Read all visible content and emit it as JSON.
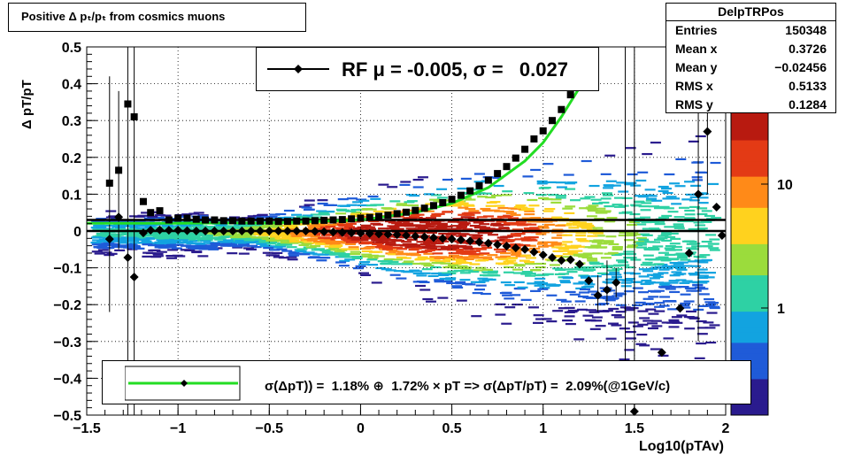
{
  "title": "Positive Δ pₜ/pₜ from cosmics muons",
  "stats": {
    "name": "DelpTRPos",
    "rows": [
      {
        "label": "Entries",
        "value": "150348"
      },
      {
        "label": "Mean x",
        "value": "0.3726"
      },
      {
        "label": "Mean y",
        "value": "−0.02456"
      },
      {
        "label": "RMS x",
        "value": "0.5133"
      },
      {
        "label": "RMS y",
        "value": "0.1284"
      }
    ]
  },
  "rf_legend": "RF μ = -0.005, σ =   0.027",
  "fit_legend": "σ(ΔpT)) =  1.18% ⊕  1.72% × pT => σ(ΔpT/pT) =  2.09%(@1GeV/c)",
  "colors": {
    "fit_curve": "#22dd22",
    "markers": "#000000",
    "palette": [
      "#2a1b8e",
      "#1f5bd8",
      "#12a3e0",
      "#2ed1a4",
      "#9bdc3c",
      "#ffd21e",
      "#ff8a18",
      "#e33a15",
      "#b81a10"
    ]
  },
  "chart_data": {
    "type": "scatter",
    "xlabel": "Log10(pTAv)",
    "ylabel": "Δ pT/pT",
    "xlim": [
      -1.5,
      2
    ],
    "ylim": [
      -0.5,
      0.5
    ],
    "grid": true,
    "x_ticks": [
      "−1.5",
      "−1",
      "−0.5",
      "0",
      "0.5",
      "1",
      "1.5",
      "2"
    ],
    "y_ticks": [
      "0.5",
      "0.4",
      "0.3",
      "0.2",
      "0.1",
      "0",
      "−0.1",
      "−0.2",
      "−0.3",
      "−0.4",
      "−0.5"
    ],
    "colorbar_ticks": [
      "10",
      "1"
    ],
    "series": [
      {
        "marker": "square",
        "points": [
          [
            -1.375,
            0.13
          ],
          [
            -1.325,
            0.165
          ],
          [
            -1.275,
            0.345
          ],
          [
            -1.24,
            0.31
          ],
          [
            -1.19,
            0.08
          ],
          [
            -1.15,
            0.05
          ],
          [
            -1.1,
            0.055
          ],
          [
            -1.05,
            0.03
          ],
          [
            -1.0,
            0.035
          ],
          [
            -0.95,
            0.035
          ],
          [
            -0.9,
            0.032
          ],
          [
            -0.85,
            0.03
          ],
          [
            -0.8,
            0.03
          ],
          [
            -0.75,
            0.028
          ],
          [
            -0.7,
            0.028
          ],
          [
            -0.65,
            0.027
          ],
          [
            -0.6,
            0.027
          ],
          [
            -0.55,
            0.027
          ],
          [
            -0.5,
            0.027
          ],
          [
            -0.45,
            0.026
          ],
          [
            -0.4,
            0.026
          ],
          [
            -0.35,
            0.027
          ],
          [
            -0.3,
            0.027
          ],
          [
            -0.25,
            0.028
          ],
          [
            -0.2,
            0.029
          ],
          [
            -0.15,
            0.03
          ],
          [
            -0.1,
            0.031
          ],
          [
            -0.05,
            0.033
          ],
          [
            0.0,
            0.035
          ],
          [
            0.05,
            0.037
          ],
          [
            0.1,
            0.04
          ],
          [
            0.15,
            0.043
          ],
          [
            0.2,
            0.047
          ],
          [
            0.25,
            0.051
          ],
          [
            0.3,
            0.056
          ],
          [
            0.35,
            0.062
          ],
          [
            0.4,
            0.069
          ],
          [
            0.45,
            0.077
          ],
          [
            0.5,
            0.086
          ],
          [
            0.55,
            0.097
          ],
          [
            0.6,
            0.109
          ],
          [
            0.65,
            0.123
          ],
          [
            0.7,
            0.138
          ],
          [
            0.75,
            0.156
          ],
          [
            0.8,
            0.175
          ],
          [
            0.85,
            0.198
          ],
          [
            0.9,
            0.222
          ],
          [
            0.95,
            0.25
          ],
          [
            1.0,
            0.272
          ],
          [
            1.05,
            0.3
          ],
          [
            1.1,
            0.33
          ],
          [
            1.15,
            0.37
          ]
        ]
      },
      {
        "marker": "diamond",
        "points": [
          [
            -1.375,
            -0.022
          ],
          [
            -1.325,
            0.038
          ],
          [
            -1.275,
            -0.072
          ],
          [
            -1.24,
            -0.125
          ],
          [
            -1.19,
            -0.005
          ],
          [
            -1.15,
            0.002
          ],
          [
            -1.1,
            0.003
          ],
          [
            -1.05,
            0.002
          ],
          [
            -1.0,
            0.002
          ],
          [
            -0.95,
            0.001
          ],
          [
            -0.9,
            0.0
          ],
          [
            -0.85,
            0.0
          ],
          [
            -0.8,
            0.0
          ],
          [
            -0.75,
            0.0
          ],
          [
            -0.7,
            0.0
          ],
          [
            -0.65,
            0.0
          ],
          [
            -0.6,
            0.0
          ],
          [
            -0.55,
            0.0
          ],
          [
            -0.5,
            0.0
          ],
          [
            -0.45,
            0.0
          ],
          [
            -0.4,
            0.0
          ],
          [
            -0.35,
            0.0
          ],
          [
            -0.3,
            0.0
          ],
          [
            -0.25,
            -0.001
          ],
          [
            -0.2,
            -0.002
          ],
          [
            -0.15,
            -0.003
          ],
          [
            -0.1,
            -0.004
          ],
          [
            -0.05,
            -0.005
          ],
          [
            0.0,
            -0.006
          ],
          [
            0.05,
            -0.007
          ],
          [
            0.1,
            -0.008
          ],
          [
            0.15,
            -0.009
          ],
          [
            0.2,
            -0.01
          ],
          [
            0.25,
            -0.012
          ],
          [
            0.3,
            -0.014
          ],
          [
            0.35,
            -0.016
          ],
          [
            0.4,
            -0.018
          ],
          [
            0.45,
            -0.02
          ],
          [
            0.5,
            -0.022
          ],
          [
            0.55,
            -0.024
          ],
          [
            0.6,
            -0.027
          ],
          [
            0.65,
            -0.03
          ],
          [
            0.7,
            -0.033
          ],
          [
            0.75,
            -0.037
          ],
          [
            0.8,
            -0.041
          ],
          [
            0.85,
            -0.046
          ],
          [
            0.9,
            -0.05
          ],
          [
            0.95,
            -0.057
          ],
          [
            1.0,
            -0.065
          ],
          [
            1.05,
            -0.072
          ],
          [
            1.1,
            -0.08
          ],
          [
            1.15,
            -0.078
          ],
          [
            1.2,
            -0.09
          ],
          [
            1.25,
            -0.135
          ],
          [
            1.3,
            -0.175
          ],
          [
            1.35,
            -0.16
          ],
          [
            1.4,
            -0.14
          ],
          [
            1.5,
            -0.49
          ],
          [
            1.65,
            -0.33
          ],
          [
            1.75,
            -0.21
          ],
          [
            1.8,
            -0.06
          ],
          [
            1.85,
            0.1
          ],
          [
            1.9,
            0.27
          ],
          [
            1.95,
            0.065
          ],
          [
            1.98,
            -0.012
          ]
        ]
      }
    ],
    "fit_curve": {
      "name": "fit",
      "points": [
        [
          -1.5,
          0.021
        ],
        [
          -1.0,
          0.021
        ],
        [
          -0.5,
          0.022
        ],
        [
          0.0,
          0.03
        ],
        [
          0.3,
          0.05
        ],
        [
          0.5,
          0.075
        ],
        [
          0.7,
          0.118
        ],
        [
          0.9,
          0.19
        ],
        [
          1.0,
          0.24
        ],
        [
          1.1,
          0.31
        ],
        [
          1.2,
          0.39
        ],
        [
          1.3,
          0.49
        ]
      ]
    },
    "reference_lines": [
      0.03,
      0.0
    ]
  }
}
